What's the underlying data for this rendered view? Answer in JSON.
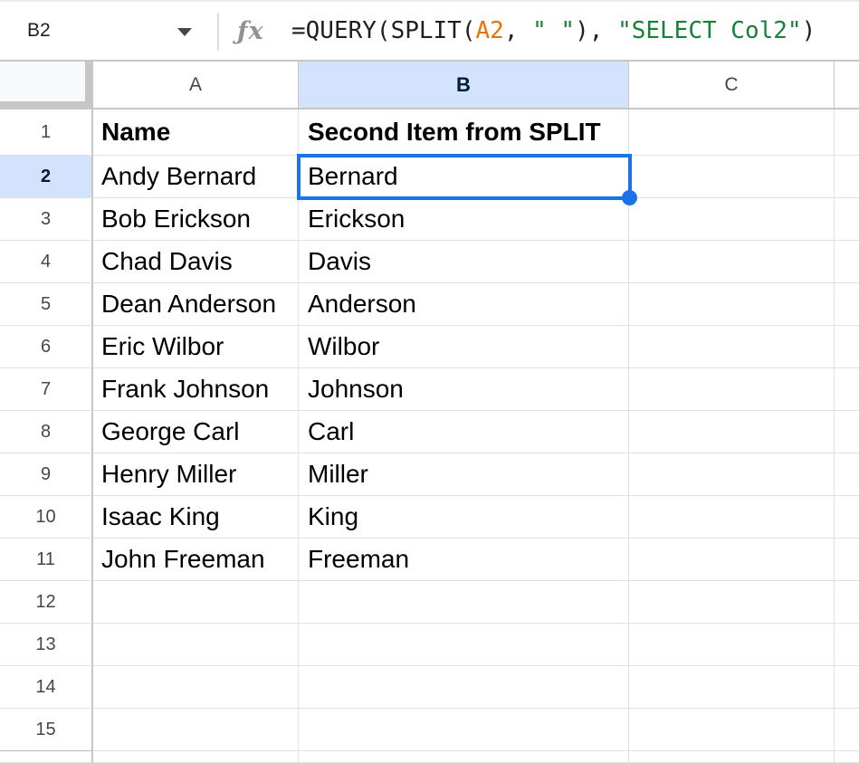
{
  "formula_bar": {
    "name_box_value": "B2",
    "fx_label": "ƒx",
    "formula_full": "=QUERY(SPLIT(A2, \" \"), \"SELECT Col2\")",
    "formula_segments": [
      {
        "text": "=QUERY(SPLIT(",
        "type": "default"
      },
      {
        "text": "A2",
        "type": "reference"
      },
      {
        "text": ", ",
        "type": "default"
      },
      {
        "text": "\" \"",
        "type": "string"
      },
      {
        "text": "), ",
        "type": "default"
      },
      {
        "text": "\"SELECT Col2\"",
        "type": "string"
      },
      {
        "text": ")",
        "type": "default"
      }
    ],
    "syntax_colors": {
      "default": "#1f1f1f",
      "reference": "#e8710a",
      "string": "#188038"
    }
  },
  "grid": {
    "column_headers": [
      "A",
      "B",
      "C"
    ],
    "selected_column": "B",
    "selected_row": 2,
    "selected_cell": "B2",
    "rows": [
      {
        "num": "1",
        "A": "Name",
        "B": "Second Item from SPLIT",
        "C": "",
        "bold": true
      },
      {
        "num": "2",
        "A": "Andy Bernard",
        "B": "Bernard",
        "C": ""
      },
      {
        "num": "3",
        "A": "Bob Erickson",
        "B": "Erickson",
        "C": ""
      },
      {
        "num": "4",
        "A": "Chad Davis",
        "B": "Davis",
        "C": ""
      },
      {
        "num": "5",
        "A": "Dean Anderson",
        "B": "Anderson",
        "C": ""
      },
      {
        "num": "6",
        "A": "Eric Wilbor",
        "B": "Wilbor",
        "C": ""
      },
      {
        "num": "7",
        "A": "Frank Johnson",
        "B": "Johnson",
        "C": ""
      },
      {
        "num": "8",
        "A": "George Carl",
        "B": "Carl",
        "C": ""
      },
      {
        "num": "9",
        "A": "Henry Miller",
        "B": "Miller",
        "C": ""
      },
      {
        "num": "10",
        "A": "Isaac King",
        "B": "King",
        "C": ""
      },
      {
        "num": "11",
        "A": "John Freeman",
        "B": "Freeman",
        "C": ""
      },
      {
        "num": "12",
        "A": "",
        "B": "",
        "C": ""
      },
      {
        "num": "13",
        "A": "",
        "B": "",
        "C": ""
      },
      {
        "num": "14",
        "A": "",
        "B": "",
        "C": ""
      },
      {
        "num": "15",
        "A": "",
        "B": "",
        "C": ""
      }
    ]
  },
  "colors": {
    "selection_border": "#1a73e8",
    "selected_header_bg": "#d3e3fd",
    "selected_header_text": "#001d35",
    "gridline": "#e1e1e1",
    "header_border": "#c7c7c7"
  }
}
